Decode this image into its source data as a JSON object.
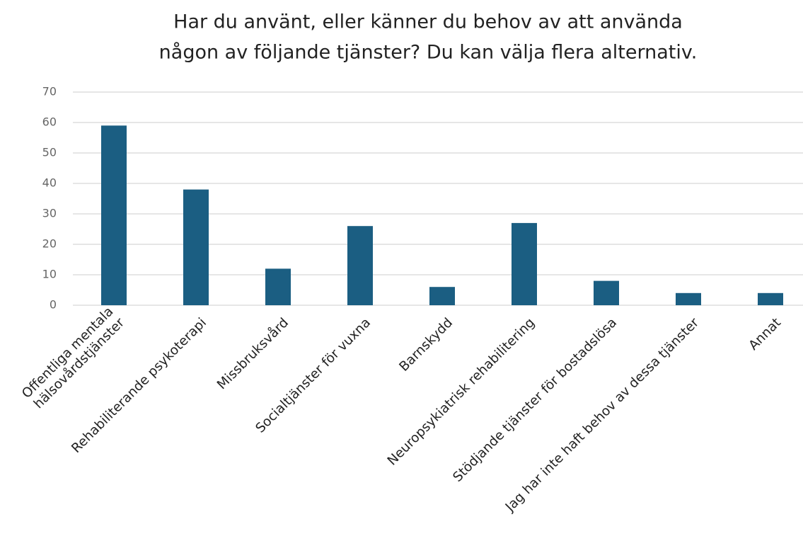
{
  "chart_data": {
    "type": "bar",
    "title": [
      "Har du använt, eller känner du behov av att använda",
      "någon av följande tjänster? Du kan välja flera alternativ."
    ],
    "categories": [
      "Offentliga mentala\nhälsovårdstjänster",
      "Rehabiliterande psykoterapi",
      "Missbruksvård",
      "Socialtjänster för vuxna",
      "Barnskydd",
      "Neuropsykiatrisk rehabilitering",
      "Stödjande tjänster för bostadslösa",
      "Jag har inte haft behov av dessa tjänster",
      "Annat"
    ],
    "values": [
      59,
      38,
      12,
      26,
      6,
      27,
      8,
      4,
      4
    ],
    "color": "#1b5e82",
    "ylim": [
      0,
      70
    ],
    "yticks": [
      0,
      10,
      20,
      30,
      40,
      50,
      60,
      70
    ],
    "grid": true
  }
}
